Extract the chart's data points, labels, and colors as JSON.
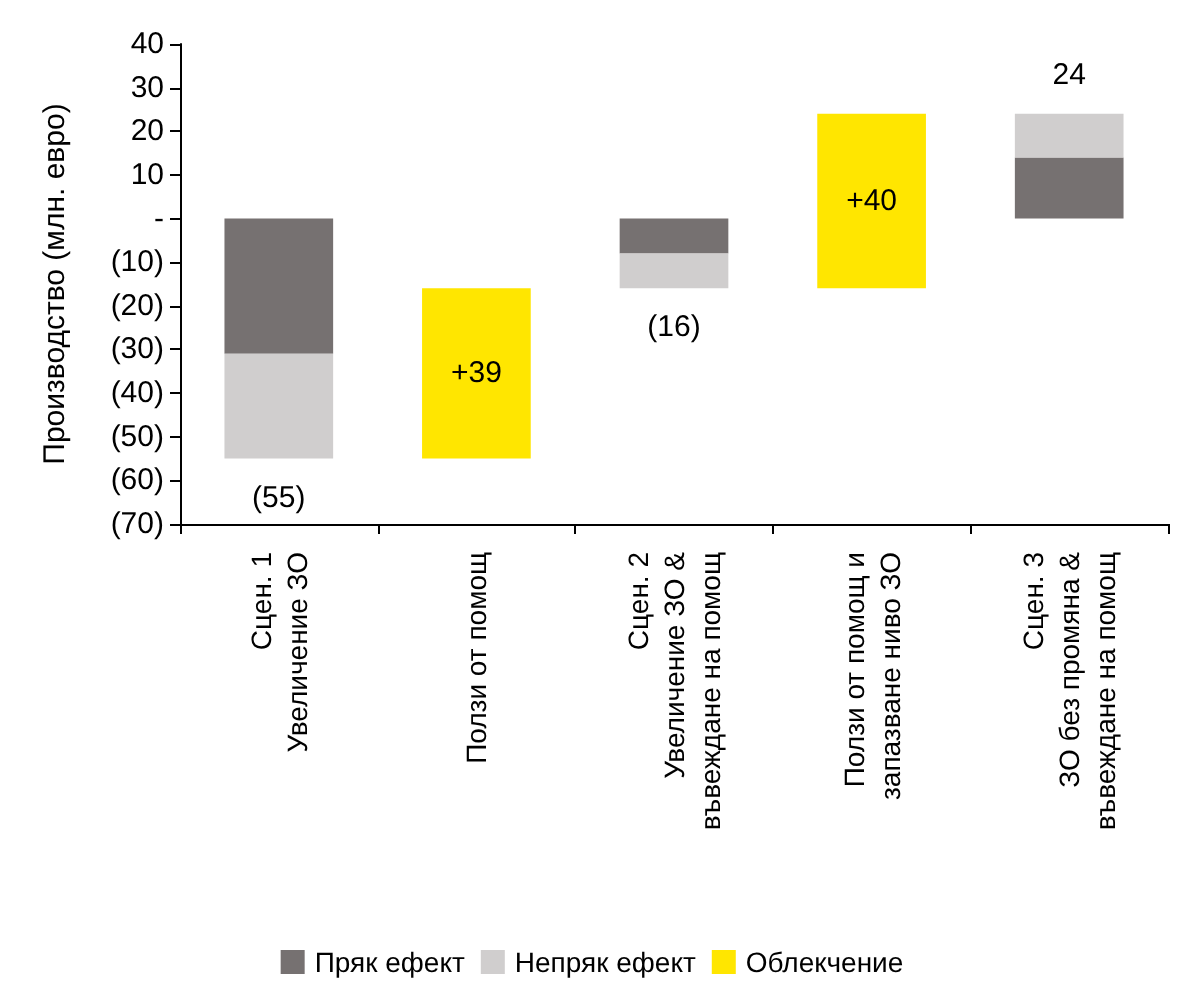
{
  "chart_data": {
    "type": "bar",
    "stacked": true,
    "ylabel": "Производство (млн. евро)",
    "categories": [
      "Сцен. 1\nУвеличение ЗО",
      "Ползи от помощ",
      "Сцен. 2\nУвеличение ЗО &\nвъвеждане на помощ",
      "Ползи от помощ и\nзапазване ниво ЗО",
      "Сцен. 3\nЗО без промяна &\nвъвеждане на помощ"
    ],
    "series": [
      {
        "name": "Пряк ефект",
        "color": "#767171",
        "values": [
          -31,
          null,
          -8,
          null,
          14
        ]
      },
      {
        "name": "Непряк ефект",
        "color": "#d0cece",
        "values": [
          -24,
          null,
          -8,
          null,
          10
        ]
      },
      {
        "name": "Облекчение",
        "color": "#ffe600",
        "values": [
          null,
          39,
          null,
          40,
          null
        ],
        "base": [
          null,
          -55,
          null,
          -16,
          null
        ],
        "value_labels": [
          null,
          "+39",
          null,
          "+40",
          null
        ]
      }
    ],
    "totals": [
      "(55)",
      null,
      "(16)",
      null,
      "24"
    ],
    "ylim": [
      -70,
      40
    ],
    "yticks": [
      {
        "value": -70,
        "label": "(70)"
      },
      {
        "value": -60,
        "label": "(60)"
      },
      {
        "value": -50,
        "label": "(50)"
      },
      {
        "value": -40,
        "label": "(40)"
      },
      {
        "value": -30,
        "label": "(30)"
      },
      {
        "value": -20,
        "label": "(20)"
      },
      {
        "value": -10,
        "label": "(10)"
      },
      {
        "value": 0,
        "label": "-"
      },
      10,
      20,
      30,
      40
    ],
    "grid": false,
    "legend": "bottom"
  }
}
